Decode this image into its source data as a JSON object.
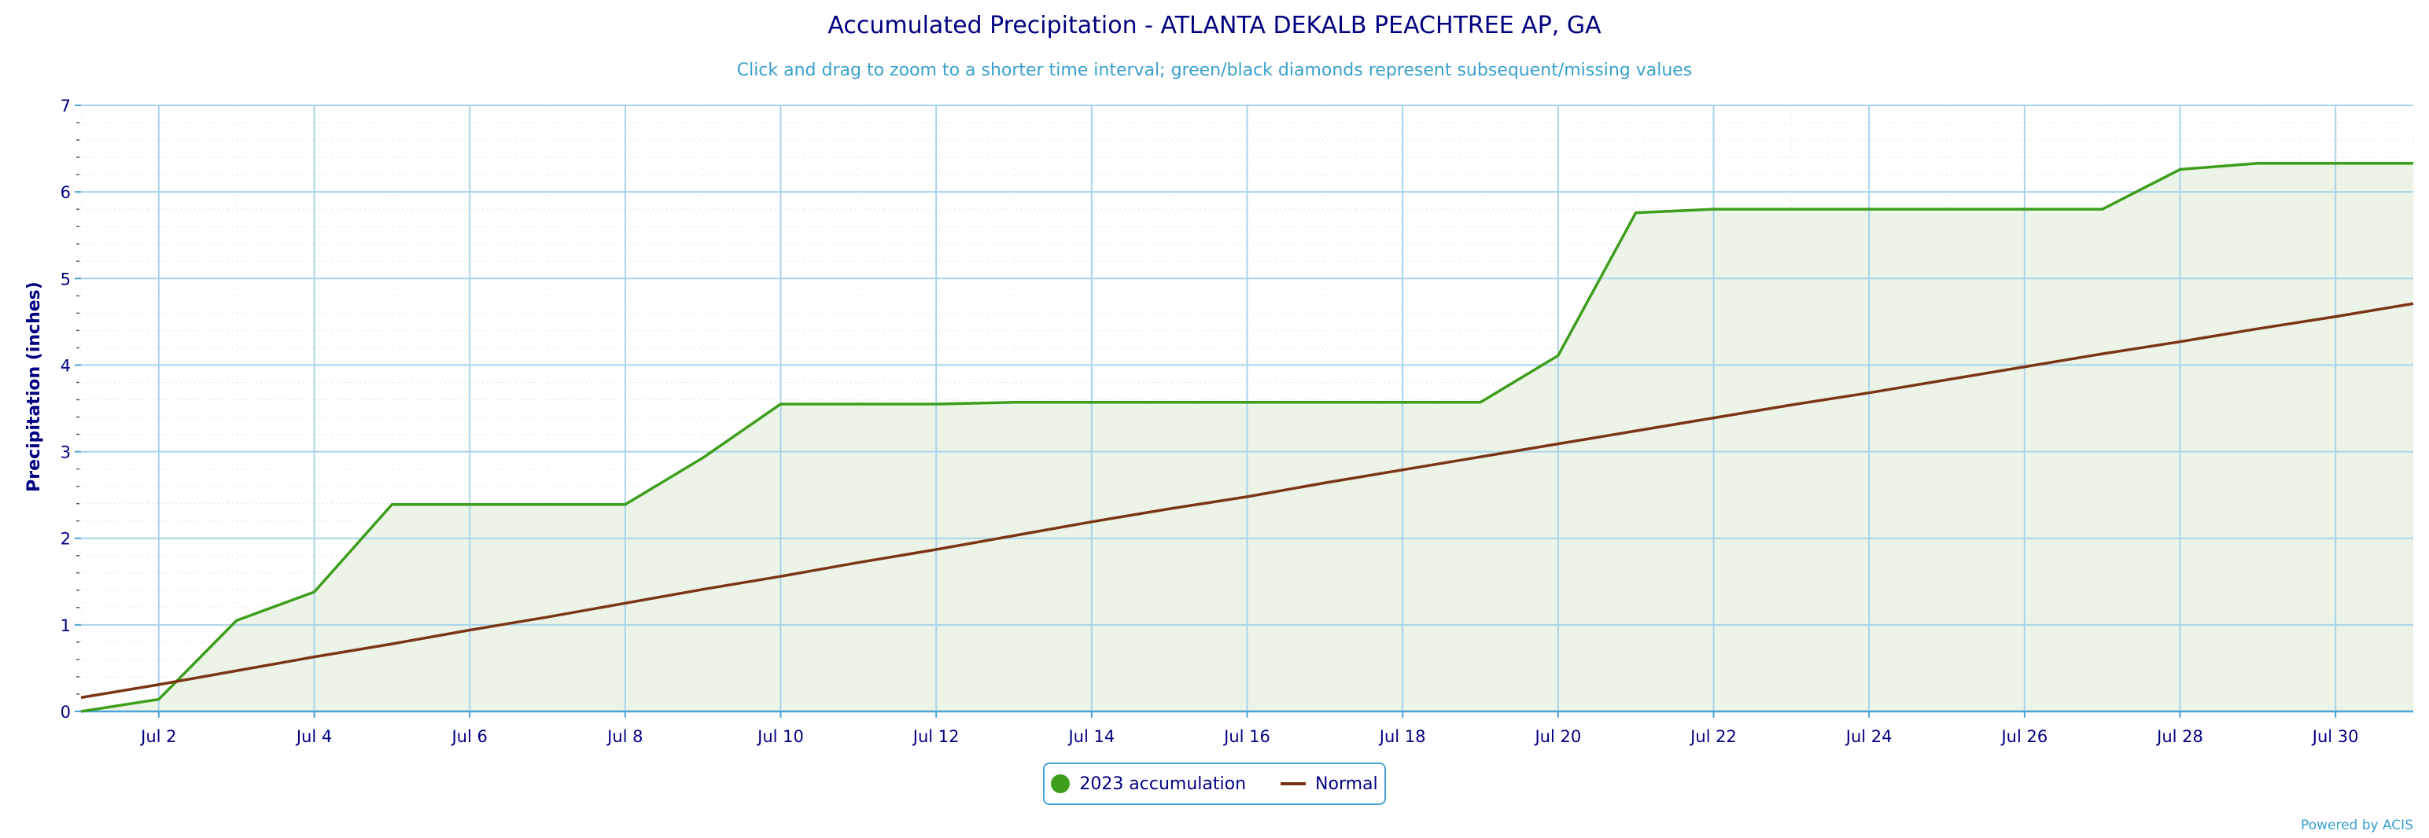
{
  "chart_data": {
    "type": "area",
    "title": "Accumulated Precipitation - ATLANTA DEKALB PEACHTREE AP, GA",
    "subtitle": "Click and drag to zoom to a shorter time interval; green/black diamonds represent subsequent/missing values",
    "ylabel": "Precipitation (inches)",
    "xlabel": "",
    "ylim": [
      0,
      7
    ],
    "y_ticks": [
      0,
      1,
      2,
      3,
      4,
      5,
      6,
      7
    ],
    "x_tick_labels": [
      "Jul 2",
      "Jul 4",
      "Jul 6",
      "Jul 8",
      "Jul 10",
      "Jul 12",
      "Jul 14",
      "Jul 16",
      "Jul 18",
      "Jul 20",
      "Jul 22",
      "Jul 24",
      "Jul 26",
      "Jul 28",
      "Jul 30"
    ],
    "x_tick_days": [
      2,
      4,
      6,
      8,
      10,
      12,
      14,
      16,
      18,
      20,
      22,
      24,
      26,
      28,
      30
    ],
    "x_range_days": [
      1,
      31
    ],
    "grid": true,
    "legend_position": "bottom-center",
    "x": [
      1,
      2,
      3,
      4,
      5,
      6,
      7,
      8,
      9,
      10,
      11,
      12,
      13,
      14,
      15,
      16,
      17,
      18,
      19,
      20,
      21,
      22,
      23,
      24,
      25,
      26,
      27,
      28,
      29,
      30,
      31
    ],
    "series": [
      {
        "name": "2023 accumulation",
        "color": "#3d9e1c",
        "fill": "#ebf4e6",
        "values": [
          0.0,
          0.14,
          1.05,
          1.38,
          2.39,
          2.39,
          2.39,
          2.39,
          2.93,
          3.55,
          3.55,
          3.55,
          3.57,
          3.57,
          3.57,
          3.57,
          3.57,
          3.57,
          3.57,
          4.11,
          5.76,
          5.8,
          5.8,
          5.8,
          5.8,
          5.8,
          5.8,
          6.26,
          6.33,
          6.33,
          6.33
        ]
      },
      {
        "name": "Normal",
        "color": "#7b3514",
        "values": [
          0.16,
          0.31,
          0.47,
          0.63,
          0.78,
          0.94,
          1.09,
          1.25,
          1.41,
          1.56,
          1.72,
          1.87,
          2.03,
          2.19,
          2.34,
          2.48,
          2.64,
          2.79,
          2.94,
          3.09,
          3.24,
          3.39,
          3.54,
          3.68,
          3.83,
          3.98,
          4.13,
          4.27,
          4.42,
          4.56,
          4.71
        ]
      }
    ]
  },
  "credit": "Powered by ACIS"
}
